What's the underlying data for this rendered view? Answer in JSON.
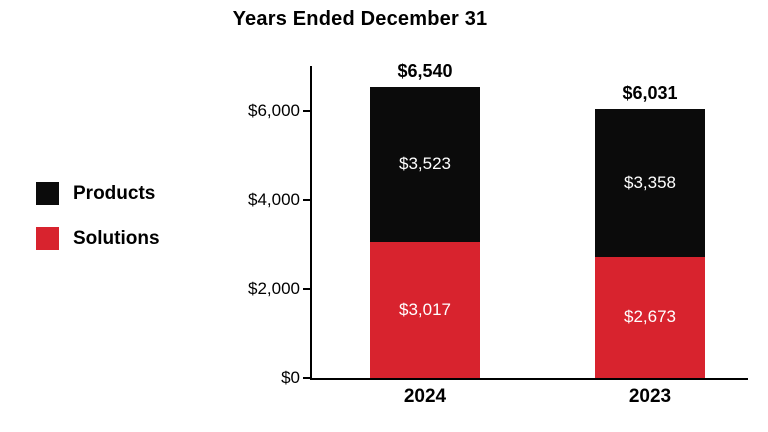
{
  "title": "Years Ended December 31",
  "colors": {
    "products": "#0b0b0b",
    "solutions": "#d8232e",
    "axis": "#000000",
    "background": "#ffffff",
    "segment_text": "#ffffff"
  },
  "legend": [
    {
      "label": "Products",
      "color": "#0b0b0b"
    },
    {
      "label": "Solutions",
      "color": "#d8232e"
    }
  ],
  "chart_data": {
    "type": "bar",
    "stacked": true,
    "title": "Years Ended December 31",
    "categories": [
      "2024",
      "2023"
    ],
    "series": [
      {
        "name": "Solutions",
        "color": "#d8232e",
        "values": [
          3017,
          2673
        ],
        "labels": [
          "$3,017",
          "$2,673"
        ]
      },
      {
        "name": "Products",
        "color": "#0b0b0b",
        "values": [
          3523,
          3358
        ],
        "labels": [
          "$3,523",
          "$3,358"
        ]
      }
    ],
    "totals": [
      6540,
      6031
    ],
    "total_labels": [
      "$6,540",
      "$6,031"
    ],
    "y_ticks": [
      0,
      2000,
      4000,
      6000
    ],
    "y_tick_labels": [
      "$0",
      "$2,000",
      "$4,000",
      "$6,000"
    ],
    "ylim": [
      0,
      7000
    ],
    "grid": false,
    "legend_position": "left"
  }
}
